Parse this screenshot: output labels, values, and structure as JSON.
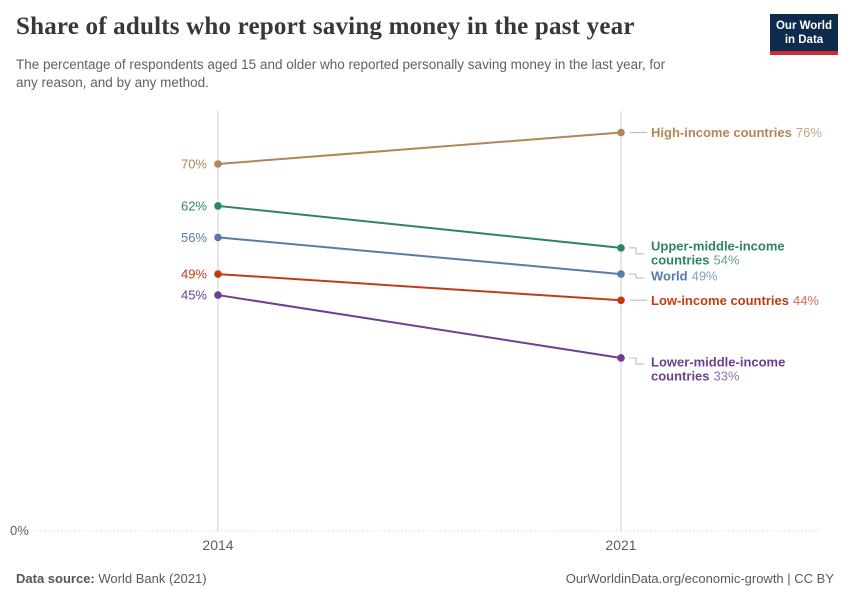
{
  "header": {
    "title": "Share of adults who report saving money in the past year",
    "subtitle_lines": [
      "The percentage of respondents aged 15 and older who reported personally saving money in the last year, for",
      "any reason, and by any method."
    ],
    "logo": {
      "line1": "Our World",
      "line2": "in Data",
      "bg_color": "#0E2A4D",
      "bar_color": "#CE2B32"
    }
  },
  "chart_data": {
    "type": "line",
    "subtype": "slope",
    "title": "Share of adults who report saving money in the past year",
    "x": [
      2014,
      2021
    ],
    "x_tick_labels": [
      "2014",
      "2021"
    ],
    "y_axis": {
      "min": 0,
      "baseline_label": "0%",
      "grid": false,
      "unit": "%"
    },
    "legend_position": "right-of-lines",
    "series": [
      {
        "name": "High-income countries",
        "label_lines": [
          "High-income countries"
        ],
        "color": "#B28657",
        "values": [
          70,
          76
        ],
        "start_label": "70%",
        "end_value_label": "76%"
      },
      {
        "name": "Upper-middle-income countries",
        "label_lines": [
          "Upper-middle-income",
          "countries"
        ],
        "color": "#2C8465",
        "values": [
          62,
          54
        ],
        "start_label": "62%",
        "end_value_label": "54%"
      },
      {
        "name": "World",
        "label_lines": [
          "World"
        ],
        "color": "#577CAB",
        "values": [
          56,
          49
        ],
        "start_label": "56%",
        "end_value_label": "49%"
      },
      {
        "name": "Low-income countries",
        "label_lines": [
          "Low-income countries"
        ],
        "color": "#C03C17",
        "values": [
          49,
          44
        ],
        "start_label": "49%",
        "end_value_label": "44%"
      },
      {
        "name": "Lower-middle-income countries",
        "label_lines": [
          "Lower-middle-income",
          "countries"
        ],
        "color": "#6D3E91",
        "values": [
          45,
          33
        ],
        "start_label": "45%",
        "end_value_label": "33%"
      }
    ]
  },
  "footer": {
    "source_label": "Data source:",
    "source_value": "World Bank (2021)",
    "credit": "OurWorldinData.org/economic-growth | CC BY"
  }
}
